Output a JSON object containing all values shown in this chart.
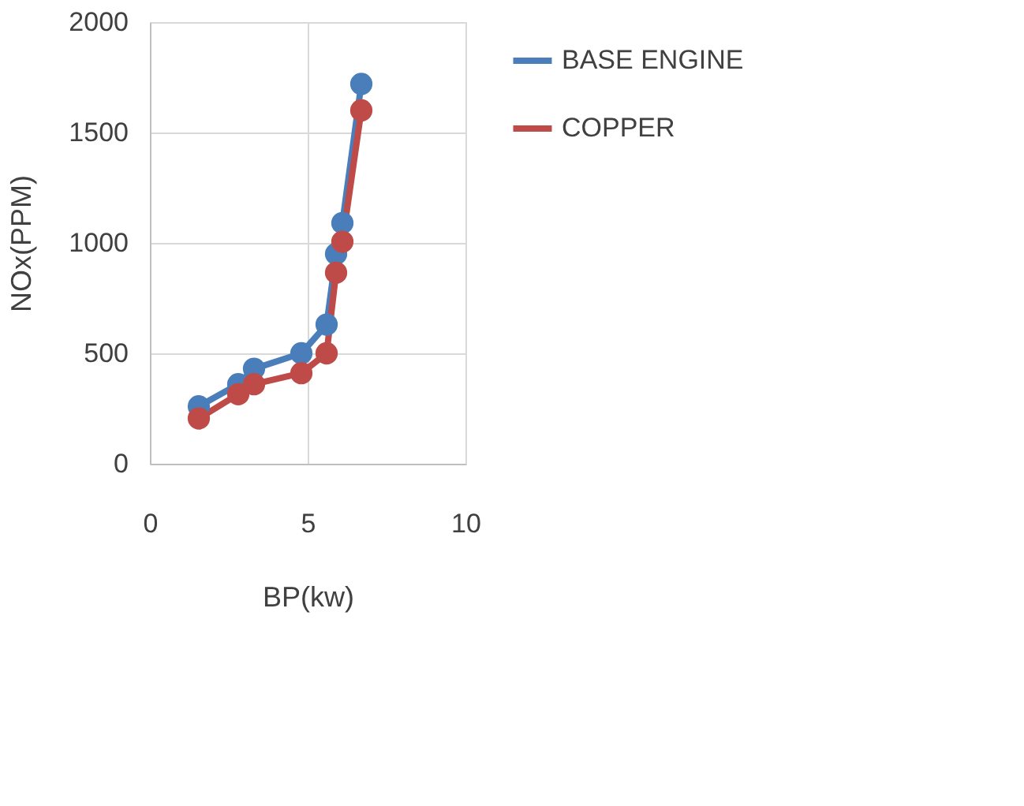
{
  "chart_data": {
    "type": "line",
    "xlabel": "BP(kw)",
    "ylabel": "NOx(PPM)",
    "xlim": [
      0,
      10
    ],
    "xticks": [
      0,
      5,
      10
    ],
    "ylim": [
      0,
      2000
    ],
    "yticks": [
      0,
      500,
      1000,
      1500,
      2000
    ],
    "grid": true,
    "legend": "right",
    "marker": "circle",
    "line_style": "solid",
    "series": [
      {
        "name": "BASE ENGINE",
        "color": "#4a7ebb",
        "x": [
          1.55,
          2.8,
          3.3,
          4.8,
          5.6,
          5.9,
          6.1,
          6.7
        ],
        "values": [
          260,
          360,
          430,
          500,
          630,
          950,
          1090,
          1720
        ]
      },
      {
        "name": "COPPER",
        "color": "#be4b48",
        "x": [
          1.55,
          2.8,
          3.3,
          4.8,
          5.6,
          5.9,
          6.1,
          6.7
        ],
        "values": [
          205,
          315,
          360,
          410,
          500,
          865,
          1005,
          1600
        ]
      }
    ]
  }
}
